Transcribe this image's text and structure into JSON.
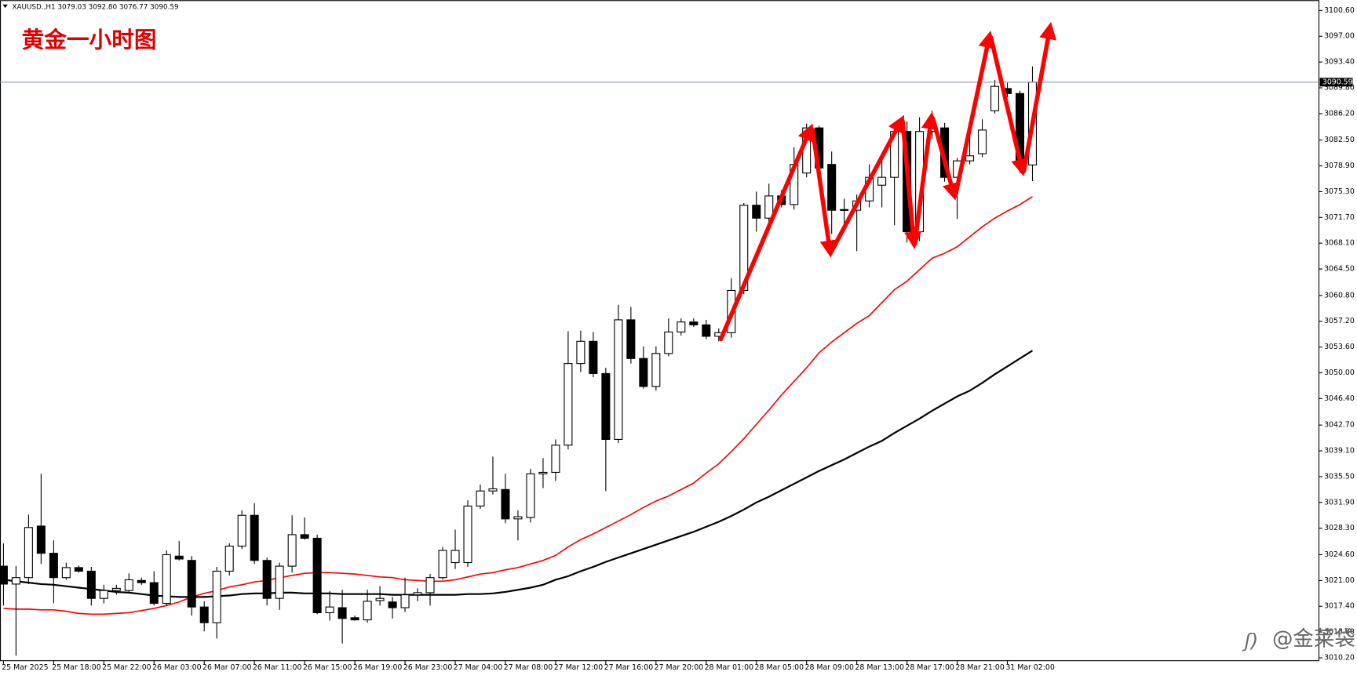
{
  "chart_data": {
    "type": "candlestick",
    "header": "XAUUSD.,H1  3079.03 3092.80 3076.77 3090.59",
    "title": "黄金一小时图",
    "watermark": "@金莱袋",
    "categories": [
      "25 Mar 2025",
      null,
      null,
      null,
      "25 Mar 18:00",
      null,
      null,
      null,
      "25 Mar 22:00",
      null,
      null,
      null,
      "26 Mar 03:00",
      null,
      null,
      null,
      "26 Mar 07:00",
      null,
      null,
      null,
      "26 Mar 11:00",
      null,
      null,
      null,
      "26 Mar 15:00",
      null,
      null,
      null,
      "26 Mar 19:00",
      null,
      null,
      null,
      "26 Mar 23:00",
      null,
      null,
      null,
      "27 Mar 04:00",
      null,
      null,
      null,
      "27 Mar 08:00",
      null,
      null,
      null,
      "27 Mar 12:00",
      null,
      null,
      null,
      "27 Mar 16:00",
      null,
      null,
      null,
      "27 Mar 20:00",
      null,
      null,
      null,
      "28 Mar 01:00",
      null,
      null,
      null,
      "28 Mar 05:00",
      null,
      null,
      null,
      "28 Mar 09:00",
      null,
      null,
      null,
      "28 Mar 13:00",
      null,
      null,
      null,
      "28 Mar 17:00",
      null,
      null,
      null,
      "28 Mar 21:00",
      null,
      null,
      null,
      "31 Mar 02:00",
      null,
      null
    ],
    "open": [
      3023.0,
      3020.5,
      3021.4,
      3028.6,
      3024.8,
      3021.4,
      3022.8,
      3022.3,
      3018.5,
      3019.6,
      3019.6,
      3021.0,
      3020.7,
      3017.8,
      3024.4,
      3023.8,
      3017.3,
      3015.1,
      3022.3,
      3025.8,
      3030.1,
      3023.8,
      3018.5,
      3023.0,
      3027.4,
      3026.9,
      3016.5,
      3017.2,
      3015.8,
      3015.5,
      3018.2,
      3018.0,
      3017.2,
      3019.0,
      3019.3,
      3021.4,
      3023.5,
      3023.5,
      3031.4,
      3033.5,
      3033.7,
      3029.6,
      3029.8,
      3035.9,
      3036.1,
      3039.9,
      3051.3,
      3054.4,
      3049.9,
      3040.7,
      3057.4,
      3052.0,
      3048.1,
      3052.7,
      3055.7,
      3057.1,
      3056.7,
      3055.1,
      3055.6,
      3061.5,
      3073.4,
      3071.6,
      3074.7,
      3073.5,
      3077.9,
      3084.2,
      3079.1,
      3072.8,
      3072.7,
      3074.0,
      3076.2,
      3077.3,
      3083.7,
      3069.7,
      3083.7,
      3084.2,
      3077.3,
      3079.6,
      3080.6,
      3086.6,
      3089.7,
      3089.0,
      3079.03
    ],
    "high": [
      3026.2,
      3023.0,
      3030.2,
      3035.9,
      3026.6,
      3023.5,
      3023.1,
      3022.9,
      3020.4,
      3020.4,
      3022.0,
      3021.4,
      3022.3,
      3025.2,
      3026.5,
      3024.4,
      3018.1,
      3022.9,
      3026.2,
      3030.8,
      3031.8,
      3024.2,
      3023.5,
      3030.1,
      3029.8,
      3027.4,
      3019.5,
      3019.7,
      3016.1,
      3019.7,
      3020.2,
      3018.7,
      3021.4,
      3019.9,
      3021.9,
      3025.7,
      3028.1,
      3032.2,
      3034.4,
      3038.3,
      3035.9,
      3030.8,
      3036.6,
      3038.1,
      3040.7,
      3055.8,
      3055.9,
      3055.7,
      3050.7,
      3059.5,
      3059.2,
      3053.7,
      3053.7,
      3057.6,
      3057.6,
      3057.6,
      3057.4,
      3056.2,
      3063.2,
      3073.7,
      3075.3,
      3076.4,
      3075.5,
      3081.5,
      3084.8,
      3084.5,
      3080.9,
      3074.3,
      3074.9,
      3079.1,
      3080.3,
      3084.5,
      3085.1,
      3085.7,
      3086.6,
      3084.9,
      3080.0,
      3083.5,
      3085.4,
      3090.9,
      3090.5,
      3089.4,
      3092.8
    ],
    "low": [
      3017.5,
      3010.5,
      3020.5,
      3023.3,
      3017.8,
      3021.1,
      3022.1,
      3017.5,
      3017.8,
      3019.0,
      3019.3,
      3020.4,
      3017.5,
      3017.5,
      3023.8,
      3016.1,
      3013.9,
      3012.9,
      3021.7,
      3025.4,
      3023.3,
      3017.5,
      3016.9,
      3022.1,
      3026.7,
      3016.3,
      3015.4,
      3012.2,
      3015.4,
      3015.1,
      3017.5,
      3015.7,
      3016.6,
      3018.1,
      3017.5,
      3021.1,
      3022.6,
      3022.9,
      3031.0,
      3033.0,
      3029.0,
      3026.6,
      3029.1,
      3033.9,
      3034.9,
      3039.3,
      3050.1,
      3049.4,
      3033.5,
      3040.2,
      3051.3,
      3047.8,
      3047.5,
      3052.3,
      3055.2,
      3056.4,
      3054.7,
      3054.4,
      3054.9,
      3061.0,
      3069.7,
      3070.9,
      3073.1,
      3072.8,
      3077.3,
      3077.9,
      3069.4,
      3070.6,
      3067.0,
      3073.1,
      3073.1,
      3070.6,
      3068.2,
      3068.4,
      3082.7,
      3076.7,
      3071.5,
      3079.1,
      3080.1,
      3086.2,
      3088.5,
      3077.9,
      3076.77
    ],
    "close": [
      3020.5,
      3021.4,
      3028.4,
      3024.8,
      3021.4,
      3022.8,
      3022.3,
      3018.5,
      3019.6,
      3019.9,
      3021.1,
      3020.7,
      3017.8,
      3024.6,
      3024.0,
      3017.3,
      3015.1,
      3022.3,
      3025.8,
      3030.1,
      3023.8,
      3018.5,
      3023.0,
      3027.4,
      3026.9,
      3016.5,
      3017.3,
      3015.7,
      3015.5,
      3018.1,
      3018.5,
      3017.2,
      3019.0,
      3019.3,
      3021.4,
      3025.2,
      3025.2,
      3031.4,
      3033.5,
      3033.8,
      3029.6,
      3029.9,
      3035.9,
      3036.1,
      3039.9,
      3051.3,
      3054.4,
      3049.9,
      3040.7,
      3057.4,
      3052.0,
      3048.1,
      3052.7,
      3055.7,
      3057.1,
      3056.7,
      3055.1,
      3055.6,
      3061.5,
      3073.4,
      3071.6,
      3074.7,
      3073.5,
      3079.1,
      3084.2,
      3078.6,
      3072.7,
      3072.7,
      3074.0,
      3077.3,
      3077.3,
      3083.7,
      3069.7,
      3083.7,
      3084.2,
      3077.3,
      3079.6,
      3080.3,
      3083.9,
      3090.0,
      3089.0,
      3079.7,
      3090.59
    ],
    "moving_averages": [
      {
        "color": "#ff0000",
        "values": [
          3017.1,
          3017.0,
          3017.0,
          3016.9,
          3016.9,
          3016.7,
          3016.4,
          3016.3,
          3016.3,
          3016.4,
          3016.5,
          3016.8,
          3017.1,
          3017.5,
          3018.0,
          3018.7,
          3019.2,
          3019.6,
          3020.1,
          3020.4,
          3020.8,
          3021.0,
          3021.4,
          3021.7,
          3022.0,
          3022.1,
          3022.1,
          3022.0,
          3021.9,
          3021.7,
          3021.5,
          3021.4,
          3021.1,
          3021.0,
          3020.9,
          3020.9,
          3021.1,
          3021.5,
          3021.9,
          3022.1,
          3022.5,
          3022.8,
          3023.3,
          3023.8,
          3024.5,
          3025.7,
          3026.7,
          3027.5,
          3028.4,
          3029.3,
          3030.2,
          3031.2,
          3032.1,
          3032.8,
          3033.7,
          3034.6,
          3036.0,
          3037.3,
          3039.0,
          3040.8,
          3042.8,
          3044.8,
          3046.9,
          3048.8,
          3050.7,
          3052.8,
          3054.3,
          3055.6,
          3056.9,
          3058.0,
          3059.8,
          3061.6,
          3062.8,
          3064.4,
          3066.0,
          3066.7,
          3067.6,
          3069.0,
          3070.4,
          3071.6,
          3072.6,
          3073.5,
          3074.6
        ]
      },
      {
        "color": "#000000",
        "values": [
          3021.1,
          3020.9,
          3020.7,
          3020.5,
          3020.4,
          3020.2,
          3020.0,
          3019.8,
          3019.6,
          3019.4,
          3019.3,
          3019.1,
          3018.9,
          3018.8,
          3018.7,
          3018.7,
          3018.7,
          3018.8,
          3018.9,
          3019.1,
          3019.2,
          3019.2,
          3019.3,
          3019.3,
          3019.2,
          3019.2,
          3019.2,
          3019.1,
          3019.1,
          3019.1,
          3019.1,
          3019.0,
          3019.0,
          3019.0,
          3019.0,
          3019.0,
          3019.0,
          3019.1,
          3019.1,
          3019.2,
          3019.4,
          3019.7,
          3020.0,
          3020.4,
          3021.1,
          3021.6,
          3022.3,
          3022.9,
          3023.6,
          3024.2,
          3024.8,
          3025.4,
          3026.0,
          3026.6,
          3027.2,
          3027.8,
          3028.5,
          3029.2,
          3030.0,
          3030.9,
          3031.9,
          3032.7,
          3033.6,
          3034.5,
          3035.4,
          3036.3,
          3037.1,
          3037.9,
          3038.8,
          3039.7,
          3040.5,
          3041.6,
          3042.6,
          3043.6,
          3044.7,
          3045.7,
          3046.7,
          3047.5,
          3048.6,
          3049.8,
          3050.9,
          3052.0,
          3053.1
        ]
      }
    ],
    "last_price": {
      "value": 3090.59,
      "label": "3090.59"
    },
    "ylim": [
      3009.8,
      3101.8
    ],
    "yticks": [
      {
        "value": 3100.6,
        "label": "3100.60"
      },
      {
        "value": 3097,
        "label": "3097.00"
      },
      {
        "value": 3093.4,
        "label": "3093.40"
      },
      {
        "value": 3089.8,
        "label": "3089.80"
      },
      {
        "value": 3086.2,
        "label": "3086.20"
      },
      {
        "value": 3082.5,
        "label": "3082.50"
      },
      {
        "value": 3078.9,
        "label": "3078.90"
      },
      {
        "value": 3075.3,
        "label": "3075.30"
      },
      {
        "value": 3071.7,
        "label": "3071.70"
      },
      {
        "value": 3068.1,
        "label": "3068.10"
      },
      {
        "value": 3064.5,
        "label": "3064.50"
      },
      {
        "value": 3060.8,
        "label": "3060.80"
      },
      {
        "value": 3057.2,
        "label": "3057.20"
      },
      {
        "value": 3053.6,
        "label": "3053.60"
      },
      {
        "value": 3050,
        "label": "3050.00"
      },
      {
        "value": 3046.4,
        "label": "3046.40"
      },
      {
        "value": 3042.7,
        "label": "3042.70"
      },
      {
        "value": 3039.1,
        "label": "3039.10"
      },
      {
        "value": 3035.5,
        "label": "3035.50"
      },
      {
        "value": 3031.9,
        "label": "3031.90"
      },
      {
        "value": 3028.3,
        "label": "3028.30"
      },
      {
        "value": 3024.6,
        "label": "3024.60"
      },
      {
        "value": 3021,
        "label": "3021.00"
      },
      {
        "value": 3017.4,
        "label": "3017.40"
      },
      {
        "value": 3013.8,
        "label": "3013.80"
      },
      {
        "value": 3010.2,
        "label": "3010.20"
      }
    ],
    "up_color": "#ffffff",
    "down_color": "#000000",
    "grid": false
  }
}
